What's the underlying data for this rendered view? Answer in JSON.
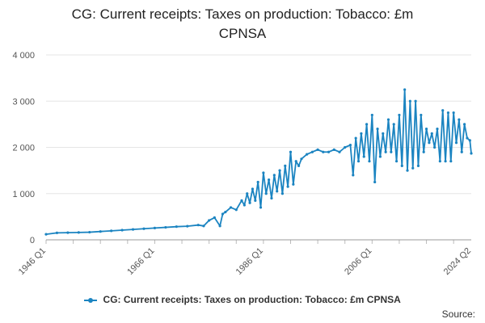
{
  "chart_data": {
    "type": "line",
    "title": [
      "CG: Current receipts: Taxes on production: Tobacco: £m",
      "CPNSA"
    ],
    "xlabel": "",
    "ylabel": "",
    "ylim": [
      0,
      4000
    ],
    "xlim_quarters": [
      "1946 Q1",
      "2024 Q2"
    ],
    "y_ticks": [
      0,
      1000,
      2000,
      3000,
      4000
    ],
    "y_tick_labels": [
      "0",
      "1 000",
      "2 000",
      "3 000",
      "4 000"
    ],
    "x_tick_labels": [
      "1946 Q1",
      "1966 Q1",
      "1986 Q1",
      "2006 Q1",
      "2024 Q2"
    ],
    "grid": true,
    "legend_position": "bottom",
    "color": "#1b84c1",
    "series": [
      {
        "name": "CG: Current receipts: Taxes on production: Tobacco: £m CPNSA",
        "points": [
          [
            "1946 Q1",
            120
          ],
          [
            "1948 Q1",
            150
          ],
          [
            "1950 Q1",
            155
          ],
          [
            "1952 Q1",
            160
          ],
          [
            "1954 Q1",
            165
          ],
          [
            "1956 Q1",
            180
          ],
          [
            "1958 Q1",
            195
          ],
          [
            "1960 Q1",
            210
          ],
          [
            "1962 Q1",
            225
          ],
          [
            "1964 Q1",
            240
          ],
          [
            "1966 Q1",
            255
          ],
          [
            "1968 Q1",
            270
          ],
          [
            "1970 Q1",
            285
          ],
          [
            "1972 Q1",
            295
          ],
          [
            "1974 Q1",
            320
          ],
          [
            "1975 Q1",
            300
          ],
          [
            "1976 Q1",
            420
          ],
          [
            "1977 Q1",
            480
          ],
          [
            "1978 Q1",
            300
          ],
          [
            "1978 Q3",
            560
          ],
          [
            "1979 Q1",
            600
          ],
          [
            "1980 Q1",
            700
          ],
          [
            "1981 Q1",
            650
          ],
          [
            "1982 Q1",
            850
          ],
          [
            "1982 Q3",
            750
          ],
          [
            "1983 Q1",
            1000
          ],
          [
            "1983 Q3",
            800
          ],
          [
            "1984 Q1",
            1100
          ],
          [
            "1984 Q3",
            850
          ],
          [
            "1985 Q1",
            1250
          ],
          [
            "1985 Q3",
            700
          ],
          [
            "1986 Q1",
            1450
          ],
          [
            "1986 Q3",
            1000
          ],
          [
            "1987 Q1",
            1300
          ],
          [
            "1987 Q3",
            900
          ],
          [
            "1988 Q1",
            1400
          ],
          [
            "1988 Q3",
            1050
          ],
          [
            "1989 Q1",
            1500
          ],
          [
            "1989 Q3",
            1000
          ],
          [
            "1990 Q1",
            1600
          ],
          [
            "1990 Q3",
            1150
          ],
          [
            "1991 Q1",
            1900
          ],
          [
            "1991 Q3",
            1200
          ],
          [
            "1992 Q1",
            1700
          ],
          [
            "1992 Q3",
            1600
          ],
          [
            "1993 Q1",
            1750
          ],
          [
            "1994 Q1",
            1850
          ],
          [
            "1995 Q1",
            1900
          ],
          [
            "1996 Q1",
            1950
          ],
          [
            "1997 Q1",
            1900
          ],
          [
            "1998 Q1",
            1900
          ],
          [
            "1999 Q1",
            1950
          ],
          [
            "2000 Q1",
            1900
          ],
          [
            "2001 Q1",
            2000
          ],
          [
            "2002 Q1",
            2050
          ],
          [
            "2002 Q3",
            1400
          ],
          [
            "2003 Q1",
            2200
          ],
          [
            "2003 Q3",
            1700
          ],
          [
            "2004 Q1",
            2300
          ],
          [
            "2004 Q3",
            1800
          ],
          [
            "2005 Q1",
            2500
          ],
          [
            "2005 Q3",
            1700
          ],
          [
            "2006 Q1",
            2700
          ],
          [
            "2006 Q3",
            1250
          ],
          [
            "2007 Q1",
            2400
          ],
          [
            "2007 Q3",
            1800
          ],
          [
            "2008 Q1",
            2300
          ],
          [
            "2008 Q3",
            1900
          ],
          [
            "2009 Q1",
            2600
          ],
          [
            "2009 Q3",
            1900
          ],
          [
            "2010 Q1",
            2500
          ],
          [
            "2010 Q3",
            1700
          ],
          [
            "2011 Q1",
            2700
          ],
          [
            "2011 Q3",
            1600
          ],
          [
            "2012 Q1",
            3250
          ],
          [
            "2012 Q3",
            1500
          ],
          [
            "2013 Q1",
            3000
          ],
          [
            "2013 Q3",
            1550
          ],
          [
            "2014 Q1",
            3000
          ],
          [
            "2014 Q3",
            1600
          ],
          [
            "2015 Q1",
            2700
          ],
          [
            "2015 Q3",
            1900
          ],
          [
            "2016 Q1",
            2400
          ],
          [
            "2016 Q3",
            2100
          ],
          [
            "2017 Q1",
            2300
          ],
          [
            "2017 Q3",
            2000
          ],
          [
            "2018 Q1",
            2400
          ],
          [
            "2018 Q3",
            1700
          ],
          [
            "2019 Q1",
            2800
          ],
          [
            "2019 Q3",
            1700
          ],
          [
            "2020 Q1",
            2750
          ],
          [
            "2020 Q3",
            1700
          ],
          [
            "2021 Q1",
            2750
          ],
          [
            "2021 Q3",
            2100
          ],
          [
            "2022 Q1",
            2600
          ],
          [
            "2022 Q3",
            1900
          ],
          [
            "2023 Q1",
            2500
          ],
          [
            "2023 Q3",
            2200
          ],
          [
            "2024 Q1",
            2150
          ],
          [
            "2024 Q2",
            1870
          ]
        ]
      }
    ]
  },
  "source_label": "Source:"
}
